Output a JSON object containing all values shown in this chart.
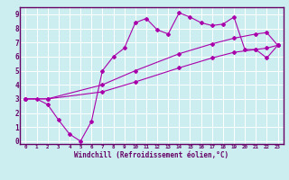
{
  "xlabel": "Windchill (Refroidissement éolien,°C)",
  "bg_color": "#cceef0",
  "line_color": "#aa00aa",
  "grid_color": "#ffffff",
  "axis_border_color": "#660066",
  "xlim": [
    -0.5,
    23.5
  ],
  "ylim": [
    -0.2,
    9.5
  ],
  "xticks": [
    0,
    1,
    2,
    3,
    4,
    5,
    6,
    7,
    8,
    9,
    10,
    11,
    12,
    13,
    14,
    15,
    16,
    17,
    18,
    19,
    20,
    21,
    22,
    23
  ],
  "yticks": [
    0,
    1,
    2,
    3,
    4,
    5,
    6,
    7,
    8,
    9
  ],
  "line1_x": [
    0,
    1,
    2,
    3,
    4,
    5,
    6,
    7,
    8,
    9,
    10,
    11,
    12,
    13,
    14,
    15,
    16,
    17,
    18,
    19,
    20,
    21,
    22,
    23
  ],
  "line1_y": [
    3.0,
    3.0,
    2.6,
    1.5,
    0.5,
    0.0,
    1.4,
    5.0,
    6.0,
    6.6,
    8.4,
    8.7,
    7.9,
    7.6,
    9.1,
    8.8,
    8.4,
    8.2,
    8.3,
    8.8,
    6.5,
    6.5,
    5.9,
    6.8
  ],
  "line2_x": [
    0,
    2,
    7,
    10,
    14,
    17,
    19,
    21,
    22,
    23
  ],
  "line2_y": [
    3.0,
    3.0,
    3.5,
    4.2,
    5.2,
    5.9,
    6.3,
    6.5,
    6.6,
    6.8
  ],
  "line3_x": [
    0,
    2,
    7,
    10,
    14,
    17,
    19,
    21,
    22,
    23
  ],
  "line3_y": [
    3.0,
    3.0,
    4.0,
    5.0,
    6.2,
    6.9,
    7.3,
    7.6,
    7.7,
    6.8
  ]
}
